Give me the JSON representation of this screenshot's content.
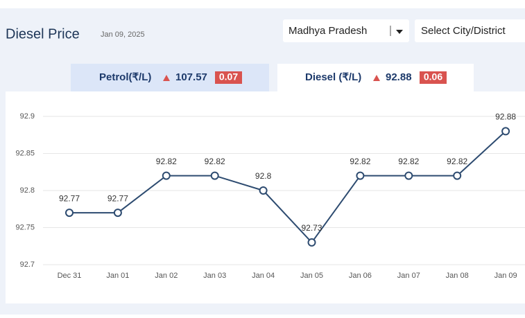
{
  "header": {
    "title": "Diesel Price",
    "date": "Jan 09, 2025",
    "state": "Madhya Pradesh",
    "city": "Select City/District"
  },
  "tabs": [
    {
      "label": "Petrol(₹/L)",
      "price": "107.57",
      "change": "0.07"
    },
    {
      "label": "Diesel (₹/L)",
      "price": "92.88",
      "change": "0.06"
    }
  ],
  "chart_data": {
    "type": "line",
    "categories": [
      "Dec 31",
      "Jan 01",
      "Jan 02",
      "Jan 03",
      "Jan 04",
      "Jan 05",
      "Jan 06",
      "Jan 07",
      "Jan 08",
      "Jan 09"
    ],
    "values": [
      92.77,
      92.77,
      92.82,
      92.82,
      92.8,
      92.73,
      92.82,
      92.82,
      92.82,
      92.88
    ],
    "color": "#2d4b70",
    "ylim": [
      92.7,
      92.9
    ],
    "yticks": [
      92.7,
      92.75,
      92.8,
      92.85,
      92.9
    ],
    "grid": true
  }
}
